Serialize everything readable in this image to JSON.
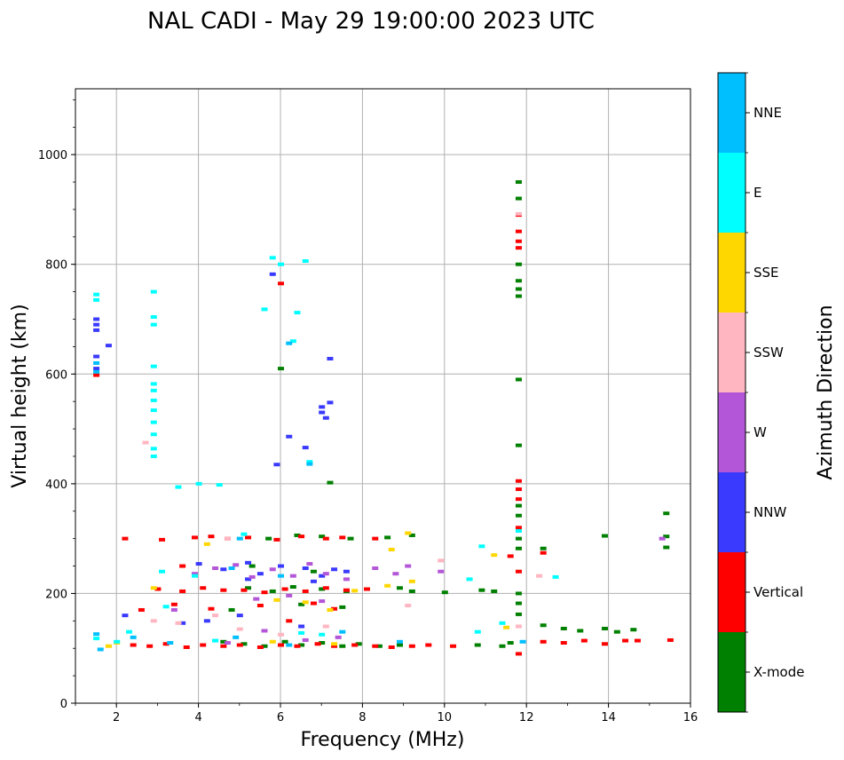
{
  "chart_data": {
    "type": "scatter",
    "title": "NAL CADI - May 29 19:00:00 2023 UTC",
    "xlabel": "Frequency (MHz)",
    "ylabel": "Virtual height (km)",
    "xlim": [
      1,
      16
    ],
    "ylim": [
      0,
      1120
    ],
    "xticks": [
      2,
      4,
      6,
      8,
      10,
      12,
      14,
      16
    ],
    "yticks": [
      0,
      200,
      400,
      600,
      800,
      1000
    ],
    "grid": true,
    "colorbar": {
      "label": "Azimuth Direction",
      "categories": [
        "X-mode",
        "Vertical",
        "NNW",
        "W",
        "SSW",
        "SSE",
        "E",
        "NNE"
      ],
      "colors": [
        "#008000",
        "#ff0000",
        "#3a3aff",
        "#b456d8",
        "#ffb6c1",
        "#ffd700",
        "#00ffff",
        "#00bfff"
      ]
    },
    "series": [
      {
        "name": "X-mode",
        "points": [
          [
            4.6,
            112
          ],
          [
            5.1,
            108
          ],
          [
            5.6,
            104
          ],
          [
            6.1,
            112
          ],
          [
            6.5,
            106
          ],
          [
            7.0,
            110
          ],
          [
            7.5,
            104
          ],
          [
            7.9,
            108
          ],
          [
            8.4,
            104
          ],
          [
            8.9,
            106
          ],
          [
            10.8,
            106
          ],
          [
            11.4,
            104
          ],
          [
            11.6,
            110
          ],
          [
            5.2,
            210
          ],
          [
            5.8,
            204
          ],
          [
            6.3,
            212
          ],
          [
            7.0,
            208
          ],
          [
            7.6,
            204
          ],
          [
            8.9,
            210
          ],
          [
            9.2,
            204
          ],
          [
            10.0,
            202
          ],
          [
            10.9,
            206
          ],
          [
            11.2,
            204
          ],
          [
            5.7,
            300
          ],
          [
            6.4,
            306
          ],
          [
            7.0,
            304
          ],
          [
            7.7,
            300
          ],
          [
            8.6,
            302
          ],
          [
            9.2,
            306
          ],
          [
            11.8,
            950
          ],
          [
            11.8,
            920
          ],
          [
            11.8,
            800
          ],
          [
            11.8,
            770
          ],
          [
            11.8,
            755
          ],
          [
            11.8,
            742
          ],
          [
            11.8,
            590
          ],
          [
            11.8,
            470
          ],
          [
            11.8,
            360
          ],
          [
            11.8,
            342
          ],
          [
            11.8,
            300
          ],
          [
            11.8,
            282
          ],
          [
            11.8,
            200
          ],
          [
            11.8,
            182
          ],
          [
            11.8,
            162
          ],
          [
            12.4,
            142
          ],
          [
            12.4,
            282
          ],
          [
            12.9,
            136
          ],
          [
            13.3,
            132
          ],
          [
            13.9,
            136
          ],
          [
            14.2,
            130
          ],
          [
            14.6,
            134
          ],
          [
            15.4,
            346
          ],
          [
            15.4,
            304
          ],
          [
            15.4,
            284
          ],
          [
            13.9,
            305
          ],
          [
            7.2,
            402
          ],
          [
            6.0,
            610
          ],
          [
            4.8,
            170
          ],
          [
            6.5,
            180
          ],
          [
            7.5,
            175
          ],
          [
            5.3,
            250
          ],
          [
            6.8,
            240
          ]
        ]
      },
      {
        "name": "Vertical",
        "points": [
          [
            2.4,
            106
          ],
          [
            2.8,
            104
          ],
          [
            3.2,
            108
          ],
          [
            3.7,
            102
          ],
          [
            4.1,
            106
          ],
          [
            4.6,
            104
          ],
          [
            5.0,
            106
          ],
          [
            5.5,
            102
          ],
          [
            6.0,
            106
          ],
          [
            6.4,
            104
          ],
          [
            6.9,
            108
          ],
          [
            7.3,
            104
          ],
          [
            7.8,
            106
          ],
          [
            8.3,
            104
          ],
          [
            8.7,
            102
          ],
          [
            9.2,
            104
          ],
          [
            9.6,
            106
          ],
          [
            10.2,
            104
          ],
          [
            12.4,
            112
          ],
          [
            12.9,
            110
          ],
          [
            13.4,
            114
          ],
          [
            13.9,
            108
          ],
          [
            14.4,
            114
          ],
          [
            14.7,
            114
          ],
          [
            15.5,
            115
          ],
          [
            3.0,
            208
          ],
          [
            3.6,
            204
          ],
          [
            4.1,
            210
          ],
          [
            4.6,
            206
          ],
          [
            5.1,
            206
          ],
          [
            5.6,
            202
          ],
          [
            6.1,
            208
          ],
          [
            6.6,
            204
          ],
          [
            7.1,
            210
          ],
          [
            7.6,
            206
          ],
          [
            8.1,
            208
          ],
          [
            2.2,
            300
          ],
          [
            3.1,
            298
          ],
          [
            3.9,
            302
          ],
          [
            4.3,
            304
          ],
          [
            4.7,
            300
          ],
          [
            5.2,
            302
          ],
          [
            5.9,
            298
          ],
          [
            6.5,
            304
          ],
          [
            7.1,
            300
          ],
          [
            7.5,
            302
          ],
          [
            8.3,
            300
          ],
          [
            11.8,
            890
          ],
          [
            11.8,
            860
          ],
          [
            11.8,
            842
          ],
          [
            11.8,
            830
          ],
          [
            11.8,
            405
          ],
          [
            11.8,
            390
          ],
          [
            11.8,
            372
          ],
          [
            11.8,
            320
          ],
          [
            11.8,
            240
          ],
          [
            11.8,
            90
          ],
          [
            12.4,
            274
          ],
          [
            11.6,
            268
          ],
          [
            1.5,
            598
          ],
          [
            6.0,
            765
          ],
          [
            2.6,
            170
          ],
          [
            3.4,
            180
          ],
          [
            4.3,
            172
          ],
          [
            5.5,
            178
          ],
          [
            6.8,
            182
          ],
          [
            7.3,
            172
          ],
          [
            6.2,
            150
          ],
          [
            3.6,
            250
          ]
        ]
      },
      {
        "name": "NNW",
        "points": [
          [
            1.5,
            700
          ],
          [
            1.5,
            690
          ],
          [
            1.5,
            680
          ],
          [
            1.5,
            632
          ],
          [
            1.5,
            610
          ],
          [
            1.8,
            652
          ],
          [
            5.8,
            782
          ],
          [
            5.9,
            435
          ],
          [
            6.2,
            486
          ],
          [
            6.6,
            466
          ],
          [
            7.0,
            540
          ],
          [
            7.0,
            530
          ],
          [
            7.1,
            520
          ],
          [
            7.2,
            548
          ],
          [
            7.2,
            628
          ],
          [
            4.0,
            254
          ],
          [
            4.6,
            244
          ],
          [
            5.2,
            256
          ],
          [
            5.5,
            236
          ],
          [
            6.0,
            250
          ],
          [
            6.6,
            246
          ],
          [
            7.0,
            232
          ],
          [
            7.3,
            244
          ],
          [
            2.2,
            160
          ],
          [
            3.6,
            146
          ],
          [
            4.2,
            150
          ],
          [
            5.0,
            160
          ],
          [
            6.5,
            140
          ],
          [
            5.2,
            226
          ],
          [
            6.8,
            222
          ],
          [
            7.6,
            240
          ]
        ]
      },
      {
        "name": "W",
        "points": [
          [
            3.9,
            236
          ],
          [
            4.4,
            246
          ],
          [
            4.9,
            252
          ],
          [
            5.3,
            230
          ],
          [
            5.8,
            244
          ],
          [
            6.3,
            232
          ],
          [
            6.7,
            254
          ],
          [
            7.1,
            236
          ],
          [
            7.6,
            226
          ],
          [
            8.3,
            246
          ],
          [
            8.8,
            236
          ],
          [
            9.1,
            250
          ],
          [
            9.9,
            240
          ],
          [
            5.4,
            190
          ],
          [
            6.2,
            196
          ],
          [
            7.0,
            186
          ],
          [
            15.3,
            300
          ],
          [
            4.7,
            110
          ],
          [
            6.6,
            115
          ],
          [
            7.4,
            120
          ],
          [
            3.4,
            170
          ],
          [
            5.6,
            132
          ]
        ]
      },
      {
        "name": "SSW",
        "points": [
          [
            2.7,
            475
          ],
          [
            2.9,
            150
          ],
          [
            3.5,
            146
          ],
          [
            4.4,
            160
          ],
          [
            5.0,
            135
          ],
          [
            6.0,
            125
          ],
          [
            7.1,
            140
          ],
          [
            9.1,
            178
          ],
          [
            9.9,
            260
          ],
          [
            12.3,
            232
          ],
          [
            11.8,
            140
          ],
          [
            11.8,
            892
          ],
          [
            4.7,
            300
          ]
        ]
      },
      {
        "name": "SSE",
        "points": [
          [
            1.8,
            104
          ],
          [
            2.0,
            110
          ],
          [
            5.8,
            112
          ],
          [
            7.3,
            108
          ],
          [
            8.7,
            280
          ],
          [
            9.1,
            310
          ],
          [
            8.6,
            214
          ],
          [
            9.2,
            222
          ],
          [
            11.2,
            270
          ],
          [
            11.5,
            138
          ],
          [
            5.9,
            188
          ],
          [
            6.6,
            184
          ],
          [
            7.2,
            170
          ],
          [
            2.9,
            210
          ],
          [
            4.2,
            290
          ],
          [
            7.8,
            205
          ]
        ]
      },
      {
        "name": "E",
        "points": [
          [
            1.5,
            745
          ],
          [
            1.5,
            735
          ],
          [
            2.9,
            750
          ],
          [
            2.9,
            704
          ],
          [
            2.9,
            690
          ],
          [
            2.9,
            614
          ],
          [
            2.9,
            582
          ],
          [
            2.9,
            570
          ],
          [
            2.9,
            552
          ],
          [
            2.9,
            534
          ],
          [
            2.9,
            512
          ],
          [
            2.9,
            490
          ],
          [
            2.9,
            464
          ],
          [
            2.9,
            450
          ],
          [
            5.6,
            718
          ],
          [
            5.8,
            812
          ],
          [
            6.0,
            800
          ],
          [
            6.3,
            660
          ],
          [
            6.4,
            712
          ],
          [
            6.6,
            806
          ],
          [
            6.7,
            440
          ],
          [
            3.5,
            394
          ],
          [
            4.0,
            400
          ],
          [
            4.5,
            398
          ],
          [
            3.2,
            176
          ],
          [
            3.1,
            240
          ],
          [
            4.4,
            114
          ],
          [
            2.0,
            112
          ],
          [
            3.9,
            232
          ],
          [
            6.5,
            128
          ],
          [
            7.0,
            125
          ],
          [
            10.9,
            286
          ],
          [
            12.7,
            230
          ],
          [
            10.8,
            130
          ],
          [
            10.6,
            226
          ],
          [
            11.8,
            314
          ],
          [
            11.4,
            146
          ],
          [
            5.1,
            308
          ],
          [
            1.5,
            118
          ],
          [
            2.3,
            130
          ]
        ]
      },
      {
        "name": "NNE",
        "points": [
          [
            1.5,
            620
          ],
          [
            1.5,
            604
          ],
          [
            6.2,
            656
          ],
          [
            6.7,
            436
          ],
          [
            5.0,
            300
          ],
          [
            4.8,
            246
          ],
          [
            6.0,
            232
          ],
          [
            1.5,
            126
          ],
          [
            1.6,
            98
          ],
          [
            2.4,
            120
          ],
          [
            3.3,
            110
          ],
          [
            4.9,
            120
          ],
          [
            6.2,
            106
          ],
          [
            7.5,
            130
          ],
          [
            8.9,
            112
          ],
          [
            11.9,
            112
          ]
        ]
      }
    ]
  }
}
